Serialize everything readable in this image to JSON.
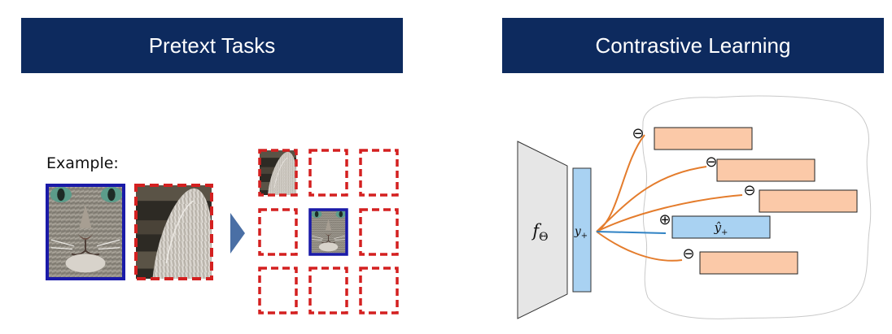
{
  "colors": {
    "banner_bg": "#0d2a5e",
    "banner_text": "#ffffff",
    "solid_border": "#1a1aa8",
    "dashed_border": "#d42020",
    "arrow": "#4a6fa5",
    "encoder_fill": "#e6e6e6",
    "embedding_fill": "#a9d2f2",
    "negative_fill": "#fbc9a8",
    "negative_line": "#e47c2c",
    "positive_line": "#2f82c4"
  },
  "left_panel": {
    "title": "Pretext Tasks",
    "example_label": "Example:",
    "grid": {
      "rows": 3,
      "columns": 3,
      "filled_cells": [
        "top-left: ear patch",
        "center: full cat face"
      ]
    }
  },
  "right_panel": {
    "title": "Contrastive Learning",
    "encoder_label": "f",
    "encoder_subscript": "Θ",
    "embedding_label": "y",
    "embedding_subscript": "+",
    "positive_symbol": "⊕",
    "negative_symbol": "⊖",
    "positive_label": "ŷ",
    "positive_subscript": "+",
    "negatives_count": 4
  }
}
